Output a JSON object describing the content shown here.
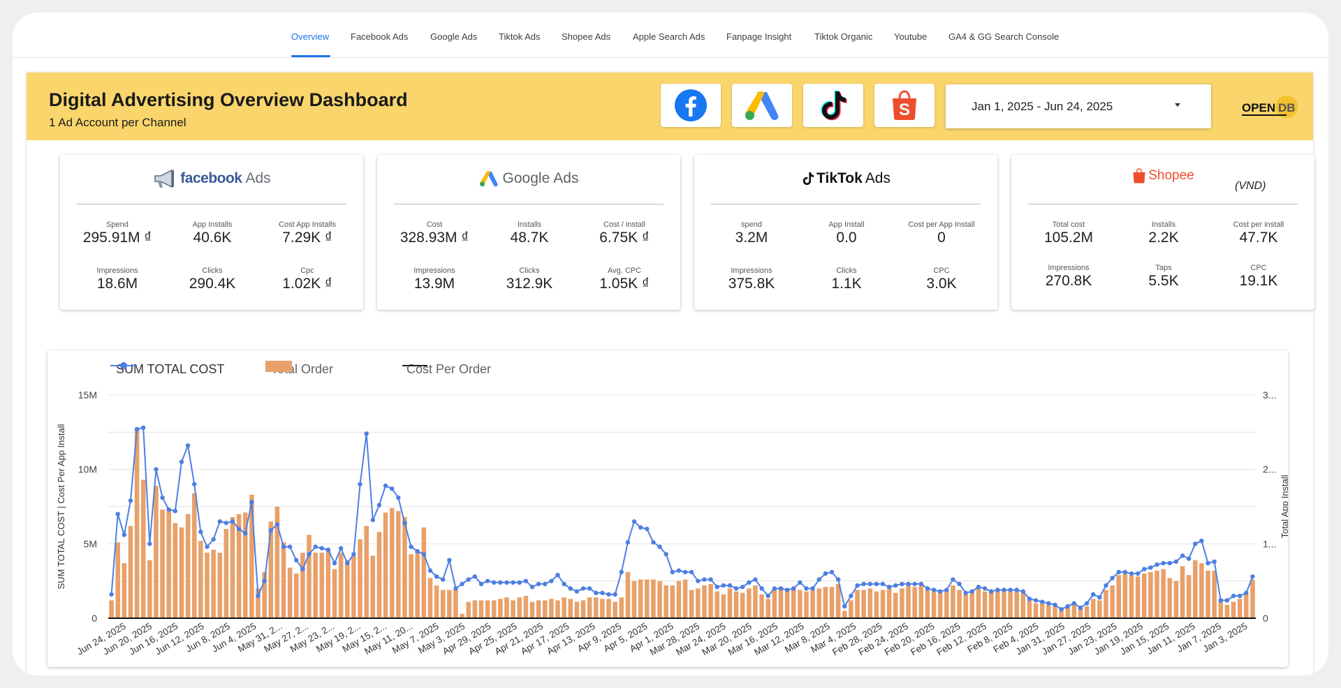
{
  "nav": {
    "tabs": [
      {
        "label": "Overview",
        "active": true
      },
      {
        "label": "Facebook Ads"
      },
      {
        "label": "Google Ads"
      },
      {
        "label": "Tiktok Ads"
      },
      {
        "label": "Shopee Ads"
      },
      {
        "label": "Apple Search Ads"
      },
      {
        "label": "Fanpage Insight"
      },
      {
        "label": "Tiktok Organic"
      },
      {
        "label": "Youtube"
      },
      {
        "label": "GA4 & GG Search Console"
      }
    ]
  },
  "header": {
    "title": "Digital Advertising Overview Dashboard",
    "subtitle": "1 Ad Account per Channel",
    "channel_buttons": [
      "facebook-icon",
      "google-ads-icon",
      "tiktok-icon",
      "shopee-icon"
    ],
    "date_range": "Jan 1, 2025 - Jun 24, 2025",
    "brand": {
      "part1": "OPEN",
      "part2": "DB"
    },
    "accent_color": "#f9d56b"
  },
  "cards": [
    {
      "logo": {
        "brand": "facebook",
        "suffix": "Ads"
      },
      "metrics": [
        {
          "label": "Spend",
          "value": "295.91M ₫"
        },
        {
          "label": "App Installs",
          "value": "40.6K"
        },
        {
          "label": "Cost App Installs",
          "value": "7.29K ₫"
        },
        {
          "label": "Impressions",
          "value": "18.6M"
        },
        {
          "label": "Clicks",
          "value": "290.4K"
        },
        {
          "label": "Cpc",
          "value": "1.02K ₫"
        }
      ]
    },
    {
      "logo": {
        "brand": "Google",
        "suffix": "Ads"
      },
      "metrics": [
        {
          "label": "Cost",
          "value": "328.93M ₫"
        },
        {
          "label": "Installs",
          "value": "48.7K"
        },
        {
          "label": "Cost / install",
          "value": "6.75K ₫"
        },
        {
          "label": "Impressions",
          "value": "13.9M"
        },
        {
          "label": "Clicks",
          "value": "312.9K"
        },
        {
          "label": "Avg. CPC",
          "value": "1.05K ₫"
        }
      ]
    },
    {
      "logo": {
        "brand": "TikTok",
        "suffix": "Ads"
      },
      "metrics": [
        {
          "label": "spend",
          "value": "3.2M"
        },
        {
          "label": "App Install",
          "value": "0.0"
        },
        {
          "label": "Cost per App Install",
          "value": "0"
        },
        {
          "label": "Impressions",
          "value": "375.8K"
        },
        {
          "label": "Clicks",
          "value": "1.1K"
        },
        {
          "label": "CPC",
          "value": "3.0K"
        }
      ]
    },
    {
      "logo": {
        "brand": "Shopee",
        "suffix": ""
      },
      "currency_note": "(VND)",
      "metrics": [
        {
          "label": "Total cost",
          "value": "105.2M"
        },
        {
          "label": "Installs",
          "value": "2.2K"
        },
        {
          "label": "Cost per install",
          "value": "47.7K"
        },
        {
          "label": "Impressions",
          "value": "270.8K"
        },
        {
          "label": "Taps",
          "value": "5.5K"
        },
        {
          "label": "CPC",
          "value": "19.1K"
        }
      ]
    }
  ],
  "chart_data": {
    "type": "bar+line",
    "legend": {
      "line": "SUM TOTAL COST",
      "bar": "Total Order",
      "line2": "Cost Per Order",
      "placement": "top-left"
    },
    "ylabel_left": "SUM TOTAL COST | Cost Per App Install",
    "ylabel_right": "Total App Install",
    "left_ticks": [
      "0",
      "5M",
      "10M",
      "15M"
    ],
    "right_ticks": [
      "0",
      "1...",
      "2...",
      "3..."
    ],
    "ylim_left": [
      0,
      15000000
    ],
    "grid": true,
    "x_tick_labels": [
      "Jun 24, 2025",
      "Jun 20, 2025",
      "Jun 16, 2025",
      "Jun 12, 2025",
      "Jun 8, 2025",
      "Jun 4, 2025",
      "May 31, 2...",
      "May 27, 2...",
      "May 23, 2...",
      "May 19, 2...",
      "May 15, 2...",
      "May 11, 20...",
      "May 7, 2025",
      "May 3, 2025",
      "Apr 29, 2025",
      "Apr 25, 2025",
      "Apr 21, 2025",
      "Apr 17, 2025",
      "Apr 13, 2025",
      "Apr 9, 2025",
      "Apr 5, 2025",
      "Apr 1, 2025",
      "Mar 28, 2025",
      "Mar 24, 2025",
      "Mar 20, 2025",
      "Mar 16, 2025",
      "Mar 12, 2025",
      "Mar 8, 2025",
      "Mar 4, 2025",
      "Feb 28, 2025",
      "Feb 24, 2025",
      "Feb 20, 2025",
      "Feb 16, 2025",
      "Feb 12, 2025",
      "Feb 8, 2025",
      "Feb 4, 2025",
      "Jan 31, 2025",
      "Jan 27, 2025",
      "Jan 23, 2025",
      "Jan 19, 2025",
      "Jan 15, 2025",
      "Jan 11, 2025",
      "Jan 7, 2025",
      "Jan 3, 2025"
    ],
    "sum_total_cost_millions": [
      1.6,
      7.0,
      5.6,
      7.9,
      12.7,
      12.8,
      5.0,
      10.0,
      8.1,
      7.3,
      7.2,
      10.5,
      11.6,
      9.0,
      5.8,
      4.8,
      5.3,
      6.5,
      6.4,
      6.5,
      6.0,
      5.7,
      7.8,
      1.5,
      2.5,
      5.9,
      6.3,
      4.8,
      4.8,
      3.9,
      3.3,
      4.3,
      4.8,
      4.7,
      4.6,
      3.7,
      4.7,
      3.7,
      4.3,
      9.0,
      12.4,
      6.6,
      7.6,
      8.9,
      8.7,
      8.1,
      6.4,
      4.8,
      4.5,
      4.3,
      3.2,
      2.8,
      2.6,
      3.9,
      2.0,
      2.3,
      2.6,
      2.8,
      2.3,
      2.5,
      2.4,
      2.4,
      2.4,
      2.4,
      2.4,
      2.5,
      2.1,
      2.3,
      2.3,
      2.5,
      2.9,
      2.3,
      2.0,
      1.8,
      2.0,
      2.0,
      1.7,
      1.7,
      1.6,
      1.6,
      3.1,
      5.1,
      6.5,
      6.1,
      6.0,
      5.1,
      4.8,
      4.3,
      3.1,
      3.2,
      3.1,
      3.1,
      2.5,
      2.6,
      2.6,
      2.1,
      2.2,
      2.2,
      2.0,
      2.1,
      2.4,
      2.6,
      2.0,
      1.5,
      2.0,
      2.0,
      1.9,
      2.0,
      2.4,
      2.0,
      2.0,
      2.6,
      3.0,
      3.1,
      2.6,
      0.8,
      1.5,
      2.2,
      2.3,
      2.3,
      2.3,
      2.3,
      2.1,
      2.2,
      2.3,
      2.3,
      2.3,
      2.3,
      2.0,
      1.9,
      1.8,
      1.9,
      2.6,
      2.3,
      1.7,
      1.8,
      2.1,
      2.0,
      1.8,
      1.9,
      1.9,
      1.9,
      1.9,
      1.8,
      1.3,
      1.2,
      1.1,
      1.0,
      0.9,
      0.6,
      0.8,
      1.0,
      0.7,
      1.0,
      1.6,
      1.4,
      2.2,
      2.7,
      3.1,
      3.1,
      3.0,
      3.0,
      3.3,
      3.4,
      3.6,
      3.7,
      3.7,
      3.8,
      4.2,
      4.0,
      5.0,
      5.2,
      3.7,
      3.8,
      1.2,
      1.2,
      1.5,
      1.5,
      1.7,
      2.8
    ],
    "total_order_millions": [
      1.2,
      5.1,
      3.7,
      6.2,
      12.7,
      9.3,
      3.9,
      8.9,
      7.3,
      7.4,
      6.4,
      6.1,
      7.0,
      8.4,
      5.2,
      4.4,
      4.6,
      4.4,
      6.0,
      6.8,
      7.0,
      7.1,
      8.3,
      2.0,
      3.1,
      6.5,
      7.5,
      5.1,
      3.4,
      3.0,
      4.4,
      5.6,
      4.4,
      4.4,
      4.6,
      3.3,
      4.4,
      3.9,
      4.2,
      5.3,
      6.2,
      4.2,
      5.8,
      7.1,
      7.4,
      7.2,
      6.8,
      4.3,
      4.5,
      6.1,
      2.7,
      2.2,
      1.9,
      1.9,
      1.9,
      0.3,
      1.1,
      1.2,
      1.2,
      1.2,
      1.2,
      1.3,
      1.4,
      1.2,
      1.4,
      1.5,
      1.1,
      1.2,
      1.2,
      1.3,
      1.2,
      1.4,
      1.3,
      1.1,
      1.2,
      1.4,
      1.4,
      1.3,
      1.3,
      1.1,
      1.4,
      3.1,
      2.5,
      2.6,
      2.6,
      2.6,
      2.5,
      2.2,
      2.2,
      2.5,
      2.6,
      1.9,
      2.0,
      2.2,
      2.3,
      1.8,
      1.6,
      2.0,
      1.8,
      1.7,
      2.0,
      2.2,
      1.6,
      1.3,
      2.0,
      2.1,
      1.9,
      2.0,
      1.9,
      1.8,
      1.9,
      2.0,
      2.1,
      2.1,
      2.3,
      0.5,
      1.2,
      1.9,
      1.9,
      2.0,
      1.8,
      1.9,
      2.0,
      1.7,
      2.0,
      2.2,
      2.1,
      2.2,
      1.9,
      1.8,
      1.8,
      1.8,
      2.2,
      1.9,
      1.6,
      1.7,
      2.0,
      1.8,
      1.8,
      1.9,
      1.9,
      1.8,
      1.8,
      1.7,
      1.2,
      1.0,
      1.0,
      0.9,
      0.8,
      0.7,
      0.7,
      0.9,
      0.7,
      0.8,
      1.3,
      1.2,
      1.9,
      2.2,
      2.9,
      3.0,
      2.9,
      2.8,
      3.0,
      3.1,
      3.2,
      3.3,
      2.7,
      2.5,
      3.5,
      2.9,
      3.9,
      3.7,
      3.2,
      3.2,
      1.3,
      0.9,
      1.1,
      1.3,
      1.6,
      2.6
    ],
    "cost_per_order_millions": [
      0.0,
      0.0
    ]
  }
}
